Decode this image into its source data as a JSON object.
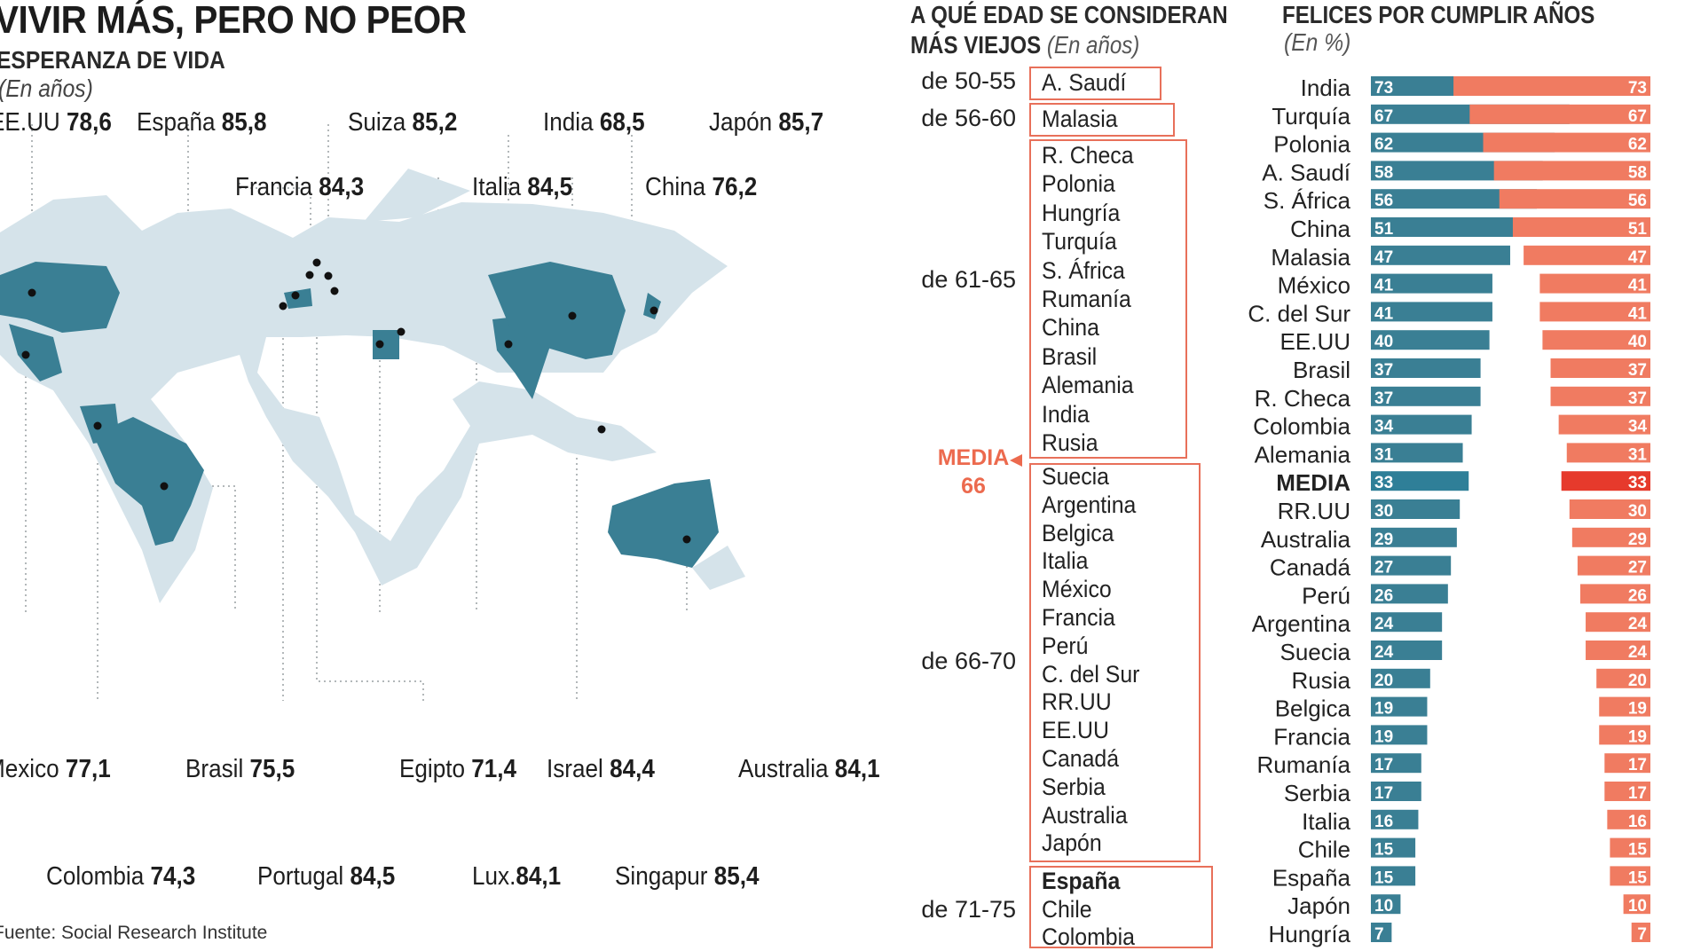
{
  "title": "VIVIR MÁS, PERO NO PEOR",
  "subtitle": "ESPERANZA DE VIDA",
  "unit": "(En años)",
  "source": "Fuente: Social Research Institute",
  "colors": {
    "teal": "#3a7f94",
    "coral": "#f07b61",
    "media_coral": "#e63a2c",
    "media_teal": "#2f7f98",
    "map_light": "#d5e3ea",
    "box": "#e8705a"
  },
  "map_labels": [
    {
      "name": "EE.UU",
      "value": "78,6"
    },
    {
      "name": "España",
      "value": "85,8"
    },
    {
      "name": "Suiza",
      "value": "85,2"
    },
    {
      "name": "India",
      "value": "68,5"
    },
    {
      "name": "Japón",
      "value": "85,7"
    },
    {
      "name": "Francia",
      "value": "84,3"
    },
    {
      "name": "Italia",
      "value": "84,5"
    },
    {
      "name": "China",
      "value": "76,2"
    },
    {
      "name": "Mexico",
      "value": "77,1"
    },
    {
      "name": "Brasil",
      "value": "75,5"
    },
    {
      "name": "Egipto",
      "value": "71,4"
    },
    {
      "name": "Israel",
      "value": "84,4"
    },
    {
      "name": "Australia",
      "value": "84,1"
    },
    {
      "name": "Colombia",
      "value": "74,3"
    },
    {
      "name": "Portugal",
      "value": "84,5"
    },
    {
      "name": "Lux.",
      "value": "84,1"
    },
    {
      "name": "Singapur",
      "value": "85,4"
    }
  ],
  "age_section": {
    "title_line1": "A QUÉ EDAD SE CONSIDERAN",
    "title_line2": "MÁS VIEJOS",
    "unit": "(En años)",
    "media_label": "MEDIA",
    "media_value": "66",
    "groups": [
      {
        "range": "de 50-55",
        "countries": [
          "A. Saudí"
        ]
      },
      {
        "range": "de 56-60",
        "countries": [
          "Malasia"
        ]
      },
      {
        "range": "de 61-65",
        "countries": [
          "R. Checa",
          "Polonia",
          "Hungría",
          "Turquía",
          "S. África",
          "Rumanía",
          "China",
          "Brasil",
          "Alemania",
          "India",
          "Rusia"
        ]
      },
      {
        "range": "de 66-70",
        "countries": [
          "Suecia",
          "Argentina",
          "Belgica",
          "Italia",
          "México",
          "Francia",
          "Perú",
          "C. del Sur",
          "RR.UU",
          "EE.UU",
          "Canadá",
          "Serbia",
          "Australia",
          "Japón"
        ]
      },
      {
        "range": "de 71-75",
        "countries": [
          "España",
          "Chile",
          "Colombia"
        ]
      }
    ]
  },
  "chart_data": {
    "type": "bar",
    "title": "FELICES POR CUMPLIR AÑOS",
    "unit": "(En %)",
    "categories": [
      "India",
      "Turquía",
      "Polonia",
      "A. Saudí",
      "S. África",
      "China",
      "Malasia",
      "México",
      "C. del Sur",
      "EE.UU",
      "Brasil",
      "R. Checa",
      "Colombia",
      "Alemania",
      "MEDIA",
      "RR.UU",
      "Australia",
      "Canadá",
      "Perú",
      "Argentina",
      "Suecia",
      "Rusia",
      "Belgica",
      "Francia",
      "Rumanía",
      "Serbia",
      "Italia",
      "Chile",
      "España",
      "Japón",
      "Hungría"
    ],
    "values": [
      73,
      67,
      62,
      58,
      56,
      51,
      47,
      41,
      41,
      40,
      37,
      37,
      34,
      31,
      33,
      30,
      29,
      27,
      26,
      24,
      24,
      20,
      19,
      19,
      17,
      17,
      16,
      15,
      15,
      10,
      7
    ],
    "highlight": "MEDIA"
  }
}
